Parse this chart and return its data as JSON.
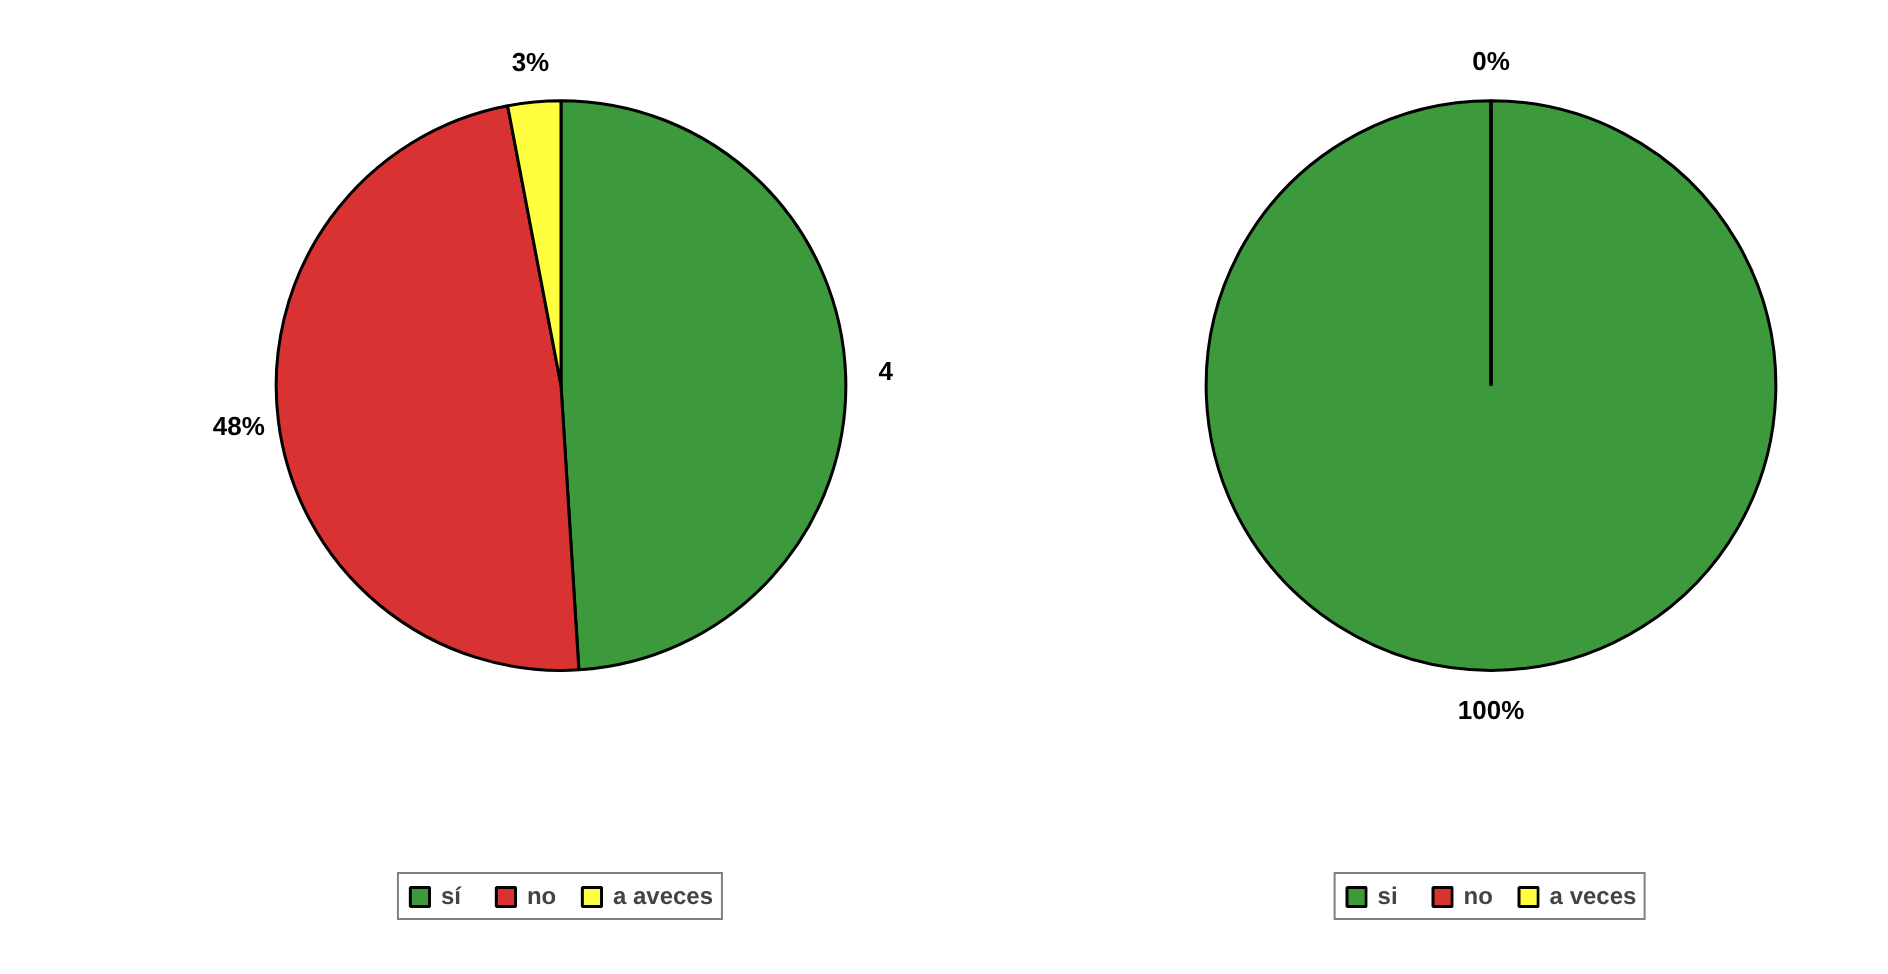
{
  "chart_data": [
    {
      "type": "pie",
      "categories": [
        "sí",
        "no",
        "a aveces"
      ],
      "values": [
        49,
        48,
        3
      ],
      "colors": [
        "#3c9a3c",
        "#d83232",
        "#ffff40"
      ],
      "value_labels": [
        null,
        "48%",
        "3%"
      ],
      "annotations": [
        "4"
      ],
      "legend": "bottom"
    },
    {
      "type": "pie",
      "categories": [
        "si",
        "no",
        "a veces"
      ],
      "values": [
        100,
        0,
        0
      ],
      "colors": [
        "#3c9a3c",
        "#d83232",
        "#ffff40"
      ],
      "value_labels": [
        "100%",
        "0%",
        null
      ],
      "legend": "bottom"
    }
  ]
}
